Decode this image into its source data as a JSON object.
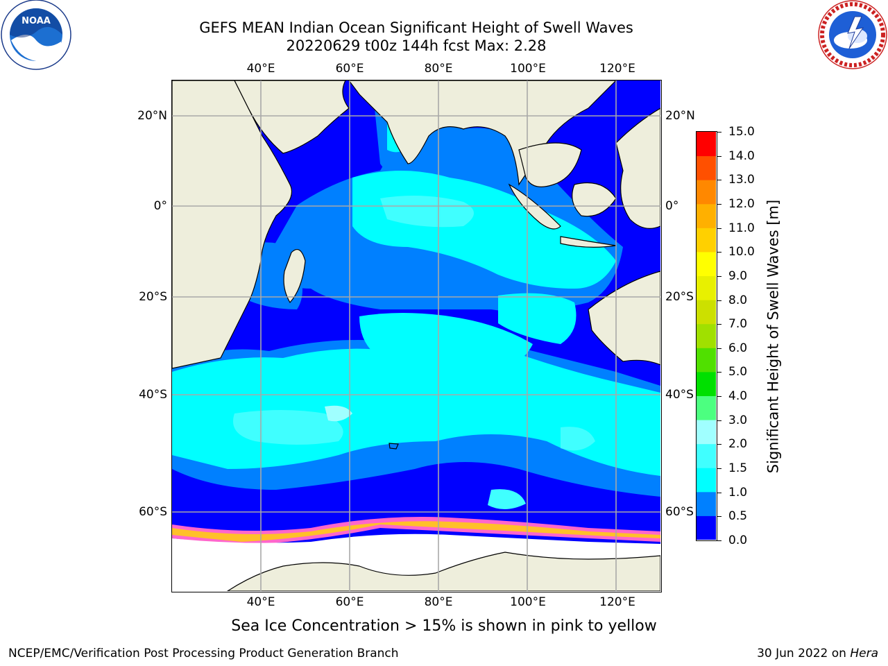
{
  "header": {
    "title_line1": "GEFS MEAN Indian Ocean Significant Height of Swell Waves",
    "title_line2": "20220629 t00z 144h fcst   Max: 2.28"
  },
  "logos": {
    "left": {
      "text": "NOAA",
      "ring_text": "NATIONAL OCEANIC AND ATMOSPHERIC ADMINISTRATION · U.S. DEPARTMENT OF COMMERCE",
      "icon": "noaa-logo"
    },
    "right": {
      "ring_text": "NATIONAL WEATHER SERVICE",
      "icon": "nws-logo"
    }
  },
  "map": {
    "lon_ticks": [
      "40°E",
      "60°E",
      "80°E",
      "100°E",
      "120°E"
    ],
    "lat_ticks": [
      "20°N",
      "0°",
      "20°S",
      "40°S",
      "60°S"
    ],
    "lon_range": [
      20,
      130
    ],
    "lat_range": [
      -75,
      27
    ],
    "ocean_color": "#0000ff",
    "land_color": "#eeeedc",
    "ice_colors": [
      "#ff66cc",
      "#ff9999",
      "#ffd700",
      "#ffffff"
    ]
  },
  "colorbar": {
    "label": "Significant Height of Swell Waves [m]",
    "ticks": [
      "0.0",
      "0.5",
      "1.0",
      "1.5",
      "2.0",
      "3.0",
      "4.0",
      "5.0",
      "6.0",
      "7.0",
      "8.0",
      "9.0",
      "10.0",
      "11.0",
      "12.0",
      "13.0",
      "14.0",
      "15.0"
    ],
    "colors": [
      "#0000ff",
      "#0080ff",
      "#00ffff",
      "#40ffff",
      "#a0ffff",
      "#4cff80",
      "#00e000",
      "#50e000",
      "#a0e000",
      "#cce000",
      "#e8f000",
      "#ffff00",
      "#ffd000",
      "#ffb000",
      "#ff8800",
      "#ff5000",
      "#ff0000"
    ]
  },
  "note": "Sea Ice Concentration > 15% is shown in pink to yellow",
  "footer": {
    "left": "NCEP/EMC/Verification Post Processing Product Generation Branch",
    "right_date": "30 Jun 2022 on ",
    "right_host": "Hera"
  }
}
